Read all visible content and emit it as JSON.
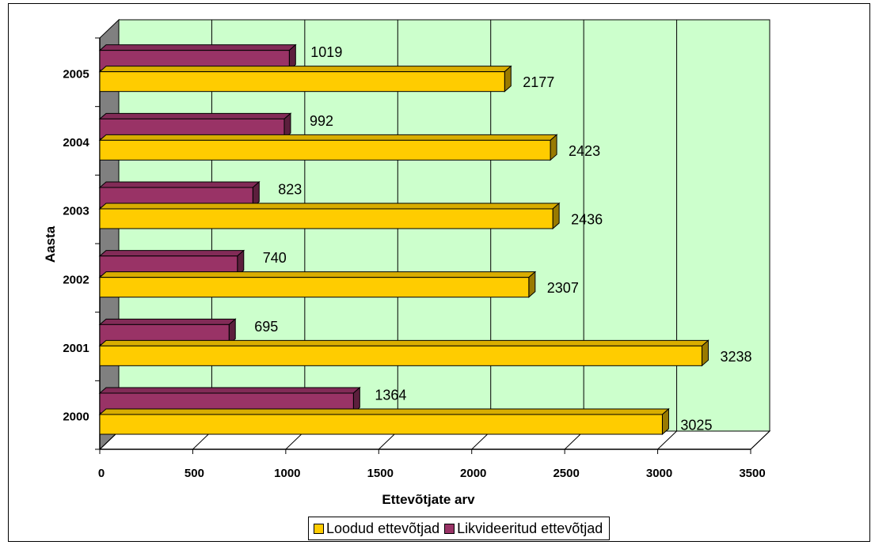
{
  "chart_data": {
    "type": "bar",
    "orientation": "horizontal",
    "categories": [
      "2000",
      "2001",
      "2002",
      "2003",
      "2004",
      "2005"
    ],
    "series": [
      {
        "name": "Loodud ettevõtjad",
        "color": "#FFCC00",
        "values": [
          3025,
          3238,
          2307,
          2436,
          2423,
          2177
        ]
      },
      {
        "name": "Likvideeritud ettevõtjad",
        "color": "#993366",
        "values": [
          1364,
          695,
          740,
          823,
          992,
          1019
        ]
      }
    ],
    "xlabel": "Ettevõtjate arv",
    "ylabel": "Aasta",
    "xlim": [
      0,
      3500
    ],
    "xticks": [
      "0",
      "500",
      "1000",
      "1500",
      "2000",
      "2500",
      "3000",
      "3500"
    ],
    "grid": true,
    "legend_position": "bottom",
    "plot_background": "#CCFFCC"
  }
}
